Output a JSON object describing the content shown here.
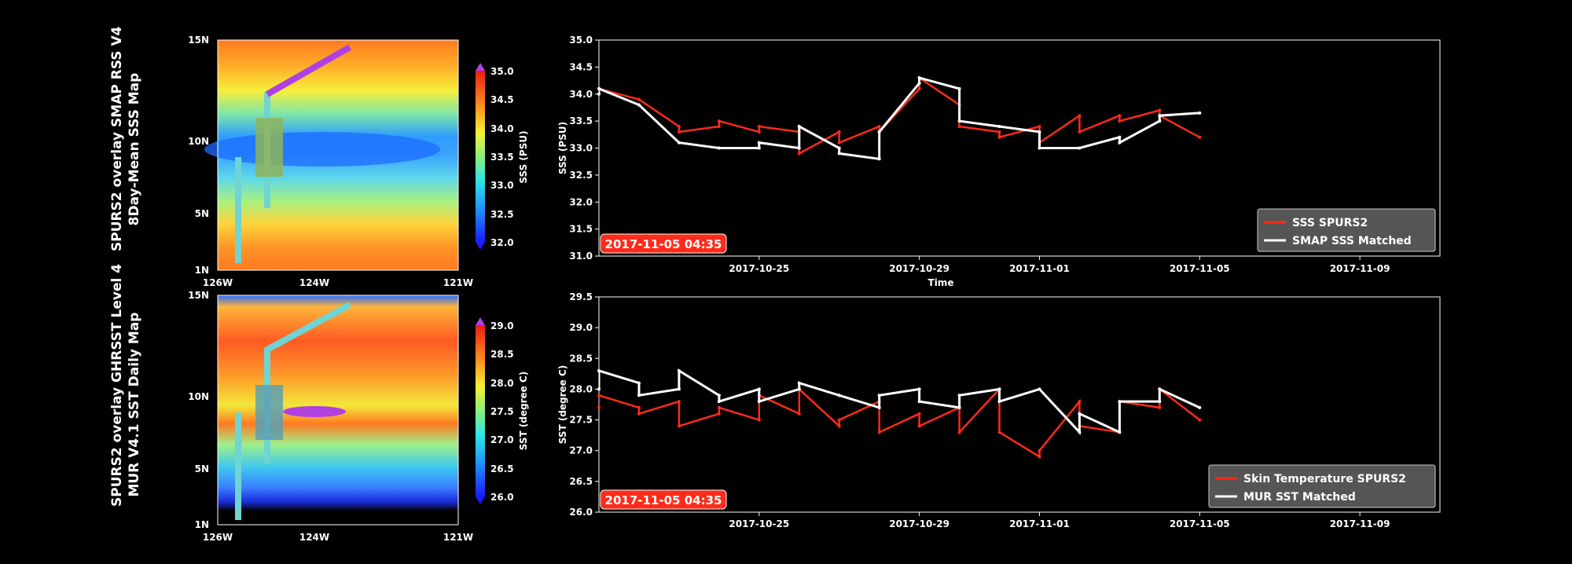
{
  "top_title": {
    "line1": "SPURS2 overlay SMAP RSS V4",
    "line2": "8Day-Mean SSS Map"
  },
  "bottom_title": {
    "line1": "SPURS2 overlay GHRSST Level 4",
    "line2": "MUR V4.1 SST Daily Map"
  },
  "map_lat_ticks": [
    "15N",
    "10N",
    "5N",
    "1N"
  ],
  "map_lon_ticks": [
    "126W",
    "124W",
    "121W"
  ],
  "colors": {
    "red_series": "#ff2a1a",
    "white_series": "#ffffff",
    "stamp_bg": "#ff2a1a",
    "legend_bg": "#555555"
  },
  "top_colorbar": {
    "label": "SSS (PSU)",
    "ticks": [
      "35.0",
      "34.5",
      "34.0",
      "33.5",
      "33.0",
      "32.5",
      "32.0"
    ]
  },
  "bottom_colorbar": {
    "label": "SST (degree C)",
    "ticks": [
      "29.0",
      "28.5",
      "28.0",
      "27.5",
      "27.0",
      "26.5",
      "26.0"
    ]
  },
  "timestamp": "2017-11-05 04:35",
  "chart_data": [
    {
      "type": "line",
      "title": "",
      "xlabel": "Time",
      "ylabel": "SSS (PSU)",
      "xlim": [
        "2017-10-21",
        "2017-11-11"
      ],
      "ylim": [
        31.0,
        35.0
      ],
      "yticks": [
        "35.0",
        "34.5",
        "34.0",
        "33.5",
        "33.0",
        "32.5",
        "32.0",
        "31.5",
        "31.0"
      ],
      "xticks": [
        "2017-10-25",
        "2017-10-29",
        "2017-11-01",
        "2017-11-05",
        "2017-11-09"
      ],
      "legend_position": "bottom-right",
      "series": [
        {
          "name": "SSS SPURS2",
          "x": [
            "2017-10-21",
            "2017-10-21",
            "2017-10-22",
            "2017-10-23",
            "2017-10-23",
            "2017-10-24",
            "2017-10-24",
            "2017-10-25",
            "2017-10-25",
            "2017-10-26",
            "2017-10-26",
            "2017-10-27",
            "2017-10-27",
            "2017-10-28",
            "2017-10-28",
            "2017-10-29",
            "2017-10-29",
            "2017-10-30",
            "2017-10-30",
            "2017-10-31",
            "2017-10-31",
            "2017-11-01",
            "2017-11-01",
            "2017-11-02",
            "2017-11-02",
            "2017-11-03",
            "2017-11-03",
            "2017-11-04",
            "2017-11-04",
            "2017-11-05"
          ],
          "y": [
            34.0,
            34.1,
            33.9,
            33.4,
            33.3,
            33.4,
            33.5,
            33.3,
            33.4,
            33.3,
            32.9,
            33.3,
            33.1,
            33.4,
            33.3,
            34.1,
            34.3,
            33.8,
            33.4,
            33.3,
            33.2,
            33.4,
            33.1,
            33.6,
            33.3,
            33.6,
            33.5,
            33.7,
            33.6,
            33.2
          ]
        },
        {
          "name": "SMAP SSS Matched",
          "x": [
            "2017-10-21",
            "2017-10-21",
            "2017-10-22",
            "2017-10-23",
            "2017-10-23",
            "2017-10-24",
            "2017-10-25",
            "2017-10-25",
            "2017-10-26",
            "2017-10-26",
            "2017-10-27",
            "2017-10-27",
            "2017-10-28",
            "2017-10-28",
            "2017-10-29",
            "2017-10-29",
            "2017-10-30",
            "2017-10-30",
            "2017-10-31",
            "2017-11-01",
            "2017-11-01",
            "2017-11-02",
            "2017-11-03",
            "2017-11-03",
            "2017-11-04",
            "2017-11-04",
            "2017-11-05"
          ],
          "y": [
            34.0,
            34.1,
            33.8,
            33.1,
            33.1,
            33.0,
            33.0,
            33.1,
            33.0,
            33.4,
            33.0,
            32.9,
            32.8,
            33.3,
            34.2,
            34.3,
            34.1,
            33.5,
            33.4,
            33.3,
            33.0,
            33.0,
            33.2,
            33.1,
            33.5,
            33.6,
            33.65
          ]
        }
      ]
    },
    {
      "type": "line",
      "title": "",
      "xlabel": "",
      "ylabel": "SST (degree C)",
      "xlim": [
        "2017-10-21",
        "2017-11-11"
      ],
      "ylim": [
        26.0,
        29.5
      ],
      "yticks": [
        "29.5",
        "29.0",
        "28.5",
        "28.0",
        "27.5",
        "27.0",
        "26.5",
        "26.0"
      ],
      "xticks": [
        "2017-10-25",
        "2017-10-29",
        "2017-11-01",
        "2017-11-05",
        "2017-11-09"
      ],
      "legend_position": "bottom-right",
      "series": [
        {
          "name": "Skin Temperature SPURS2",
          "x": [
            "2017-10-21",
            "2017-10-21",
            "2017-10-22",
            "2017-10-22",
            "2017-10-23",
            "2017-10-23",
            "2017-10-24",
            "2017-10-24",
            "2017-10-25",
            "2017-10-25",
            "2017-10-26",
            "2017-10-26",
            "2017-10-27",
            "2017-10-27",
            "2017-10-28",
            "2017-10-28",
            "2017-10-29",
            "2017-10-29",
            "2017-10-30",
            "2017-10-30",
            "2017-10-31",
            "2017-10-31",
            "2017-11-01",
            "2017-11-01",
            "2017-11-02",
            "2017-11-02",
            "2017-11-03",
            "2017-11-03",
            "2017-11-04",
            "2017-11-04",
            "2017-11-05"
          ],
          "y": [
            27.7,
            27.9,
            27.7,
            27.6,
            27.8,
            27.4,
            27.6,
            27.7,
            27.5,
            27.9,
            27.6,
            28.0,
            27.4,
            27.5,
            27.8,
            27.3,
            27.6,
            27.4,
            27.7,
            27.3,
            28.0,
            27.3,
            26.9,
            27.0,
            27.8,
            27.4,
            27.3,
            27.8,
            27.7,
            28.0,
            27.5
          ]
        },
        {
          "name": "MUR SST Matched",
          "x": [
            "2017-10-21",
            "2017-10-21",
            "2017-10-22",
            "2017-10-22",
            "2017-10-23",
            "2017-10-23",
            "2017-10-24",
            "2017-10-24",
            "2017-10-25",
            "2017-10-25",
            "2017-10-26",
            "2017-10-26",
            "2017-10-27",
            "2017-10-27",
            "2017-10-28",
            "2017-10-28",
            "2017-10-29",
            "2017-10-29",
            "2017-10-30",
            "2017-10-30",
            "2017-10-31",
            "2017-10-31",
            "2017-11-01",
            "2017-11-02",
            "2017-11-02",
            "2017-11-03",
            "2017-11-03",
            "2017-11-04",
            "2017-11-04",
            "2017-11-05"
          ],
          "y": [
            28.0,
            28.3,
            28.1,
            27.9,
            28.0,
            28.3,
            27.9,
            27.8,
            28.0,
            27.8,
            28.0,
            28.1,
            27.9,
            27.9,
            27.7,
            27.9,
            28.0,
            27.8,
            27.7,
            27.9,
            28.0,
            27.8,
            28.0,
            27.3,
            27.6,
            27.3,
            27.8,
            27.8,
            28.0,
            27.7
          ]
        }
      ]
    }
  ]
}
